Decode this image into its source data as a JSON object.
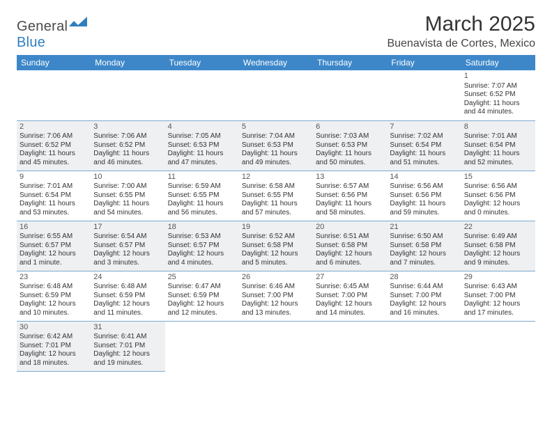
{
  "logo": {
    "text1": "General",
    "text2": "Blue"
  },
  "title": "March 2025",
  "location": "Buenavista de Cortes, Mexico",
  "colors": {
    "header_bg": "#3d87c9",
    "header_text": "#ffffff",
    "row_border": "#7ba9d0",
    "shaded_bg": "#eef0f2",
    "text": "#333333",
    "logo_blue": "#2f7fbf"
  },
  "dayHeaders": [
    "Sunday",
    "Monday",
    "Tuesday",
    "Wednesday",
    "Thursday",
    "Friday",
    "Saturday"
  ],
  "weeks": [
    {
      "shaded": false,
      "cells": [
        {
          "empty": true
        },
        {
          "empty": true
        },
        {
          "empty": true
        },
        {
          "empty": true
        },
        {
          "empty": true
        },
        {
          "empty": true
        },
        {
          "day": "1",
          "sunrise": "Sunrise: 7:07 AM",
          "sunset": "Sunset: 6:52 PM",
          "daylight1": "Daylight: 11 hours",
          "daylight2": "and 44 minutes."
        }
      ]
    },
    {
      "shaded": true,
      "cells": [
        {
          "day": "2",
          "sunrise": "Sunrise: 7:06 AM",
          "sunset": "Sunset: 6:52 PM",
          "daylight1": "Daylight: 11 hours",
          "daylight2": "and 45 minutes."
        },
        {
          "day": "3",
          "sunrise": "Sunrise: 7:06 AM",
          "sunset": "Sunset: 6:52 PM",
          "daylight1": "Daylight: 11 hours",
          "daylight2": "and 46 minutes."
        },
        {
          "day": "4",
          "sunrise": "Sunrise: 7:05 AM",
          "sunset": "Sunset: 6:53 PM",
          "daylight1": "Daylight: 11 hours",
          "daylight2": "and 47 minutes."
        },
        {
          "day": "5",
          "sunrise": "Sunrise: 7:04 AM",
          "sunset": "Sunset: 6:53 PM",
          "daylight1": "Daylight: 11 hours",
          "daylight2": "and 49 minutes."
        },
        {
          "day": "6",
          "sunrise": "Sunrise: 7:03 AM",
          "sunset": "Sunset: 6:53 PM",
          "daylight1": "Daylight: 11 hours",
          "daylight2": "and 50 minutes."
        },
        {
          "day": "7",
          "sunrise": "Sunrise: 7:02 AM",
          "sunset": "Sunset: 6:54 PM",
          "daylight1": "Daylight: 11 hours",
          "daylight2": "and 51 minutes."
        },
        {
          "day": "8",
          "sunrise": "Sunrise: 7:01 AM",
          "sunset": "Sunset: 6:54 PM",
          "daylight1": "Daylight: 11 hours",
          "daylight2": "and 52 minutes."
        }
      ]
    },
    {
      "shaded": false,
      "cells": [
        {
          "day": "9",
          "sunrise": "Sunrise: 7:01 AM",
          "sunset": "Sunset: 6:54 PM",
          "daylight1": "Daylight: 11 hours",
          "daylight2": "and 53 minutes."
        },
        {
          "day": "10",
          "sunrise": "Sunrise: 7:00 AM",
          "sunset": "Sunset: 6:55 PM",
          "daylight1": "Daylight: 11 hours",
          "daylight2": "and 54 minutes."
        },
        {
          "day": "11",
          "sunrise": "Sunrise: 6:59 AM",
          "sunset": "Sunset: 6:55 PM",
          "daylight1": "Daylight: 11 hours",
          "daylight2": "and 56 minutes."
        },
        {
          "day": "12",
          "sunrise": "Sunrise: 6:58 AM",
          "sunset": "Sunset: 6:55 PM",
          "daylight1": "Daylight: 11 hours",
          "daylight2": "and 57 minutes."
        },
        {
          "day": "13",
          "sunrise": "Sunrise: 6:57 AM",
          "sunset": "Sunset: 6:56 PM",
          "daylight1": "Daylight: 11 hours",
          "daylight2": "and 58 minutes."
        },
        {
          "day": "14",
          "sunrise": "Sunrise: 6:56 AM",
          "sunset": "Sunset: 6:56 PM",
          "daylight1": "Daylight: 11 hours",
          "daylight2": "and 59 minutes."
        },
        {
          "day": "15",
          "sunrise": "Sunrise: 6:56 AM",
          "sunset": "Sunset: 6:56 PM",
          "daylight1": "Daylight: 12 hours",
          "daylight2": "and 0 minutes."
        }
      ]
    },
    {
      "shaded": true,
      "cells": [
        {
          "day": "16",
          "sunrise": "Sunrise: 6:55 AM",
          "sunset": "Sunset: 6:57 PM",
          "daylight1": "Daylight: 12 hours",
          "daylight2": "and 1 minute."
        },
        {
          "day": "17",
          "sunrise": "Sunrise: 6:54 AM",
          "sunset": "Sunset: 6:57 PM",
          "daylight1": "Daylight: 12 hours",
          "daylight2": "and 3 minutes."
        },
        {
          "day": "18",
          "sunrise": "Sunrise: 6:53 AM",
          "sunset": "Sunset: 6:57 PM",
          "daylight1": "Daylight: 12 hours",
          "daylight2": "and 4 minutes."
        },
        {
          "day": "19",
          "sunrise": "Sunrise: 6:52 AM",
          "sunset": "Sunset: 6:58 PM",
          "daylight1": "Daylight: 12 hours",
          "daylight2": "and 5 minutes."
        },
        {
          "day": "20",
          "sunrise": "Sunrise: 6:51 AM",
          "sunset": "Sunset: 6:58 PM",
          "daylight1": "Daylight: 12 hours",
          "daylight2": "and 6 minutes."
        },
        {
          "day": "21",
          "sunrise": "Sunrise: 6:50 AM",
          "sunset": "Sunset: 6:58 PM",
          "daylight1": "Daylight: 12 hours",
          "daylight2": "and 7 minutes."
        },
        {
          "day": "22",
          "sunrise": "Sunrise: 6:49 AM",
          "sunset": "Sunset: 6:58 PM",
          "daylight1": "Daylight: 12 hours",
          "daylight2": "and 9 minutes."
        }
      ]
    },
    {
      "shaded": false,
      "cells": [
        {
          "day": "23",
          "sunrise": "Sunrise: 6:48 AM",
          "sunset": "Sunset: 6:59 PM",
          "daylight1": "Daylight: 12 hours",
          "daylight2": "and 10 minutes."
        },
        {
          "day": "24",
          "sunrise": "Sunrise: 6:48 AM",
          "sunset": "Sunset: 6:59 PM",
          "daylight1": "Daylight: 12 hours",
          "daylight2": "and 11 minutes."
        },
        {
          "day": "25",
          "sunrise": "Sunrise: 6:47 AM",
          "sunset": "Sunset: 6:59 PM",
          "daylight1": "Daylight: 12 hours",
          "daylight2": "and 12 minutes."
        },
        {
          "day": "26",
          "sunrise": "Sunrise: 6:46 AM",
          "sunset": "Sunset: 7:00 PM",
          "daylight1": "Daylight: 12 hours",
          "daylight2": "and 13 minutes."
        },
        {
          "day": "27",
          "sunrise": "Sunrise: 6:45 AM",
          "sunset": "Sunset: 7:00 PM",
          "daylight1": "Daylight: 12 hours",
          "daylight2": "and 14 minutes."
        },
        {
          "day": "28",
          "sunrise": "Sunrise: 6:44 AM",
          "sunset": "Sunset: 7:00 PM",
          "daylight1": "Daylight: 12 hours",
          "daylight2": "and 16 minutes."
        },
        {
          "day": "29",
          "sunrise": "Sunrise: 6:43 AM",
          "sunset": "Sunset: 7:00 PM",
          "daylight1": "Daylight: 12 hours",
          "daylight2": "and 17 minutes."
        }
      ]
    },
    {
      "shaded": true,
      "cells": [
        {
          "day": "30",
          "sunrise": "Sunrise: 6:42 AM",
          "sunset": "Sunset: 7:01 PM",
          "daylight1": "Daylight: 12 hours",
          "daylight2": "and 18 minutes."
        },
        {
          "day": "31",
          "sunrise": "Sunrise: 6:41 AM",
          "sunset": "Sunset: 7:01 PM",
          "daylight1": "Daylight: 12 hours",
          "daylight2": "and 19 minutes."
        },
        {
          "empty": true
        },
        {
          "empty": true
        },
        {
          "empty": true
        },
        {
          "empty": true
        },
        {
          "empty": true
        }
      ]
    }
  ]
}
